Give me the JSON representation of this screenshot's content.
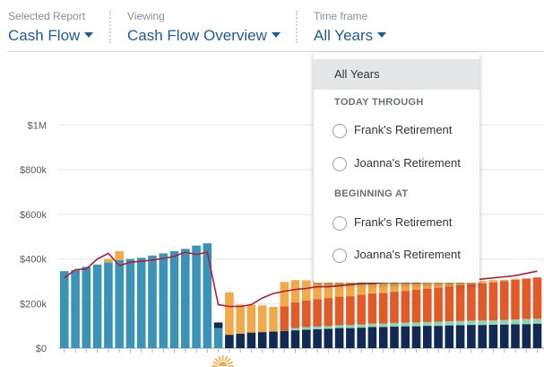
{
  "header": {
    "selected_report": {
      "label": "Selected Report",
      "value": "Cash Flow"
    },
    "viewing": {
      "label": "Viewing",
      "value": "Cash Flow Overview"
    },
    "time_frame": {
      "label": "Time frame",
      "value": "All Years"
    }
  },
  "dropdown": {
    "selected": "All Years",
    "sections": [
      {
        "heading": "TODAY THROUGH",
        "options": [
          "Frank's Retirement",
          "Joanna's Retirement"
        ]
      },
      {
        "heading": "BEGINNING AT",
        "options": [
          "Frank's Retirement",
          "Joanna's Retirement"
        ]
      }
    ]
  },
  "chart_data": {
    "type": "bar",
    "stacked": true,
    "y_ticks": [
      "$0",
      "$200k",
      "$400k",
      "$600k",
      "$800k",
      "$1M"
    ],
    "ylim": [
      0,
      1050000
    ],
    "grid": true,
    "colors": {
      "blue": "#3b93b8",
      "orange": "#f2a94a",
      "navy": "#102a54",
      "teal": "#8ad6b5",
      "darkorange": "#e15a28",
      "line": "#b31f36"
    },
    "years": 44,
    "series": [
      {
        "color_key": "blue",
        "values": [
          345000,
          350000,
          365000,
          375000,
          385000,
          395000,
          400000,
          405000,
          415000,
          425000,
          435000,
          445000,
          460000,
          470000,
          90000,
          0,
          0,
          0,
          0,
          0,
          0,
          0,
          0,
          0,
          0,
          0,
          0,
          0,
          0,
          0,
          0,
          0,
          0,
          0,
          0,
          0,
          0,
          0,
          0,
          0,
          0,
          0,
          0,
          0
        ]
      },
      {
        "color_key": "orange",
        "values": [
          0,
          0,
          0,
          0,
          15000,
          40000,
          0,
          0,
          0,
          0,
          0,
          0,
          0,
          0,
          0,
          190000,
          130000,
          125000,
          120000,
          110000,
          110000,
          100000,
          90000,
          85000,
          80000,
          70000,
          70000,
          65000,
          60000,
          55000,
          45000,
          40000,
          35000,
          30000,
          25000,
          20000,
          15000,
          15000,
          10000,
          10000,
          5000,
          5000,
          0,
          0
        ]
      },
      {
        "color_key": "navy",
        "values": [
          0,
          0,
          0,
          0,
          0,
          0,
          0,
          0,
          0,
          0,
          0,
          0,
          0,
          0,
          25000,
          60000,
          65000,
          70000,
          72000,
          75000,
          77000,
          80000,
          83000,
          85000,
          87000,
          90000,
          90000,
          92000,
          95000,
          95000,
          97000,
          98000,
          98000,
          100000,
          100000,
          102000,
          103000,
          104000,
          104000,
          105000,
          106000,
          107000,
          108000,
          110000
        ]
      },
      {
        "color_key": "teal",
        "values": [
          0,
          0,
          0,
          0,
          0,
          0,
          0,
          0,
          0,
          0,
          0,
          0,
          0,
          0,
          0,
          0,
          0,
          0,
          0,
          0,
          0,
          10000,
          11000,
          12000,
          12000,
          13000,
          13000,
          14000,
          15000,
          15000,
          16000,
          16000,
          17000,
          17000,
          18000,
          18000,
          19000,
          19000,
          20000,
          20000,
          21000,
          21000,
          22000,
          22000
        ]
      },
      {
        "color_key": "darkorange",
        "values": [
          0,
          0,
          0,
          0,
          0,
          0,
          0,
          0,
          0,
          0,
          0,
          0,
          0,
          0,
          0,
          0,
          0,
          0,
          0,
          0,
          110000,
          115000,
          120000,
          123000,
          126000,
          128000,
          130000,
          133000,
          135000,
          137000,
          140000,
          143000,
          147000,
          150000,
          153000,
          157000,
          160000,
          163000,
          167000,
          170000,
          174000,
          178000,
          182000,
          185000
        ]
      }
    ],
    "line": [
      315000,
      352000,
      355000,
      400000,
      425000,
      370000,
      385000,
      390000,
      395000,
      402000,
      412000,
      430000,
      420000,
      430000,
      195000,
      187000,
      187000,
      195000,
      225000,
      245000,
      255000,
      263000,
      268000,
      275000,
      275000,
      280000,
      285000,
      290000,
      290000,
      295000,
      295000,
      295000,
      295000,
      297000,
      297000,
      300000,
      300000,
      305000,
      310000,
      315000,
      320000,
      325000,
      335000,
      345000
    ]
  }
}
